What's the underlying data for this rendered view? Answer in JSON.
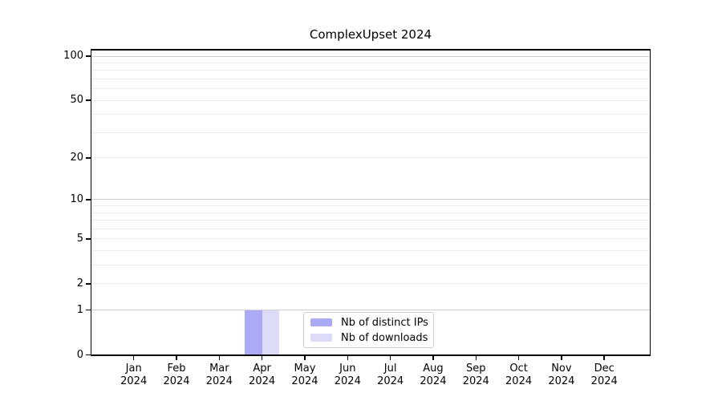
{
  "title": "ComplexUpset 2024",
  "chart_data": {
    "type": "bar",
    "title": "ComplexUpset 2024",
    "categories": [
      "Jan 2024",
      "Feb 2024",
      "Mar 2024",
      "Apr 2024",
      "May 2024",
      "Jun 2024",
      "Jul 2024",
      "Aug 2024",
      "Sep 2024",
      "Oct 2024",
      "Nov 2024",
      "Dec 2024"
    ],
    "series": [
      {
        "name": "Nb of distinct IPs",
        "color": "#aaaaf7",
        "values": [
          null,
          null,
          null,
          1,
          null,
          null,
          null,
          null,
          null,
          null,
          null,
          null
        ]
      },
      {
        "name": "Nb of downloads",
        "color": "#dcdcf8",
        "values": [
          null,
          null,
          null,
          1,
          null,
          null,
          null,
          null,
          null,
          null,
          null,
          null
        ]
      }
    ],
    "xlabel": "",
    "ylabel": "",
    "y_scale": "log1p",
    "y_ticks": [
      0,
      1,
      2,
      5,
      10,
      20,
      50,
      100
    ],
    "y_major_gridlines": [
      1,
      10,
      100
    ],
    "y_minor_gridlines": [
      2,
      3,
      4,
      5,
      6,
      7,
      8,
      9,
      20,
      30,
      40,
      50,
      60,
      70,
      80,
      90
    ],
    "ylim": [
      0,
      112
    ],
    "grid": true,
    "legend_position": "inside-bottom-center"
  },
  "legend": {
    "items": [
      {
        "label": "Nb of distinct IPs",
        "color": "#aaaaf7"
      },
      {
        "label": "Nb of downloads",
        "color": "#dcdcf8"
      }
    ]
  },
  "colors": {
    "grid_major": "#cfcfcf",
    "grid_minor": "#ececec",
    "spine": "#000000",
    "legend_border": "#cccccc"
  }
}
